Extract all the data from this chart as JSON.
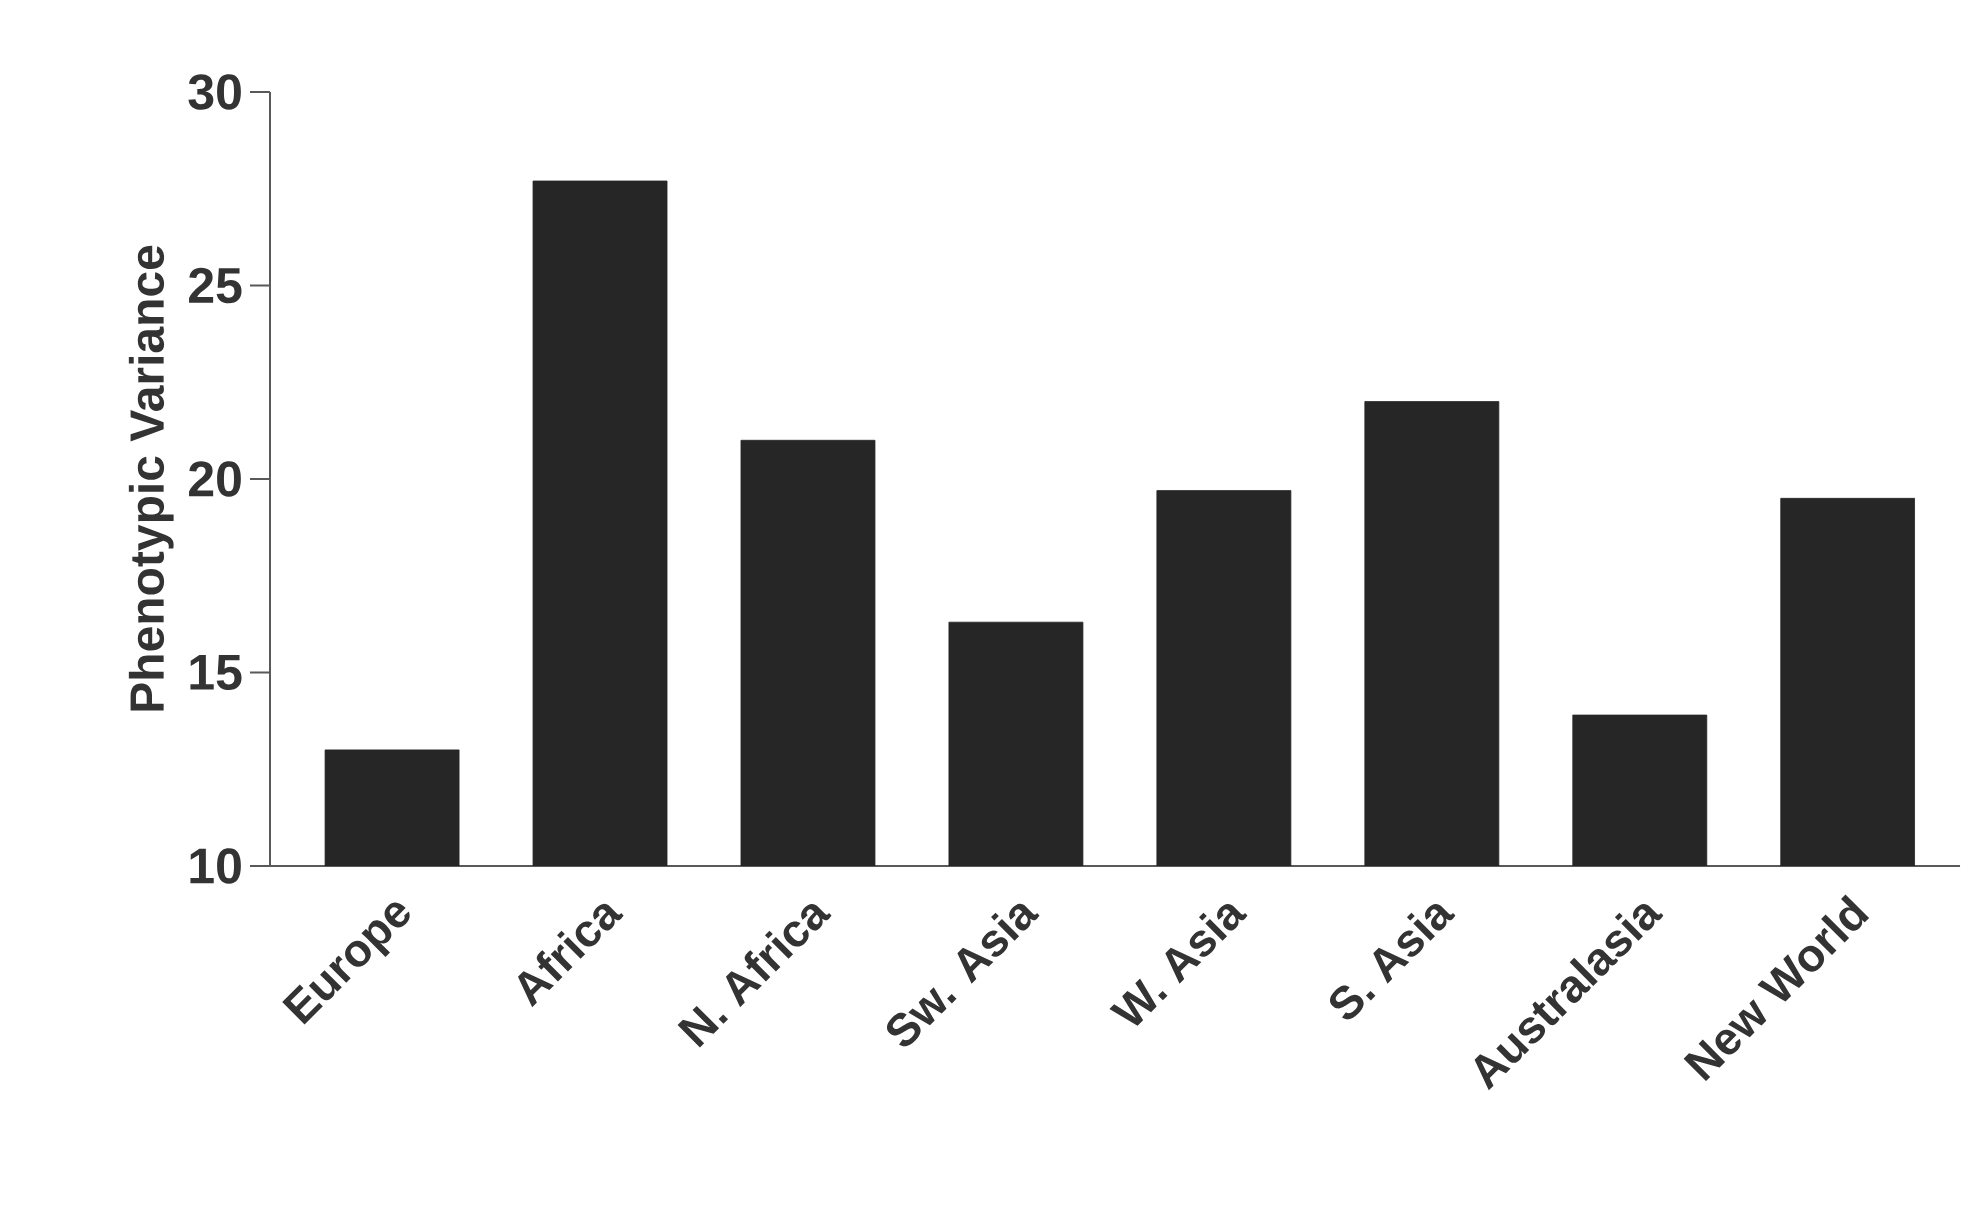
{
  "chart_data": {
    "type": "bar",
    "ylabel": "Phenotypic Variance",
    "categories": [
      "Europe",
      "Africa",
      "N. Africa",
      "Sw. Asia",
      "W. Asia",
      "S. Asia",
      "Australasia",
      "New World"
    ],
    "values": [
      13.0,
      27.7,
      21.0,
      16.3,
      19.7,
      22.0,
      13.9,
      19.5
    ],
    "color": "#262626",
    "ylim": [
      10,
      30
    ],
    "yticks": [
      10,
      15,
      20,
      25,
      30
    ],
    "grid": false
  }
}
